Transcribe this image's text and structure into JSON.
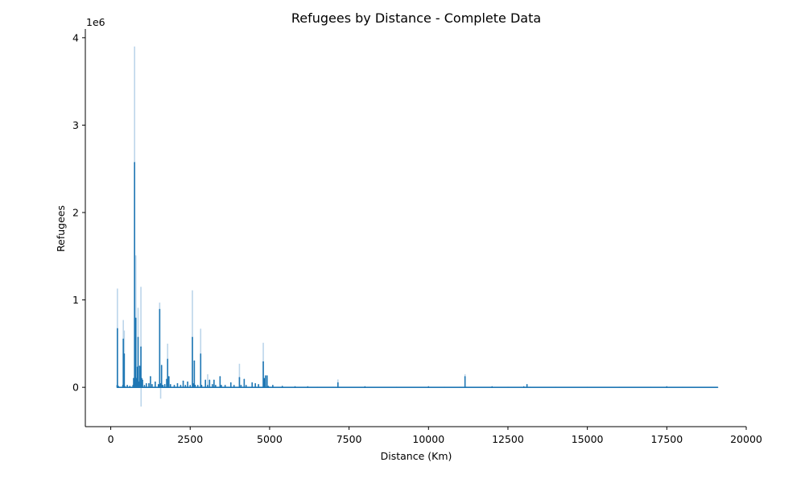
{
  "chart_data": {
    "type": "line",
    "title": "Refugees by Distance - Complete Data",
    "xlabel": "Distance (Km)",
    "ylabel": "Refugees",
    "y_offset_text": "1e6",
    "xlim": [
      -800,
      20000
    ],
    "ylim": [
      -450000,
      4100000
    ],
    "x_ticks": [
      0,
      2500,
      5000,
      7500,
      10000,
      12500,
      15000,
      17500,
      20000
    ],
    "x_tick_labels": [
      "0",
      "2500",
      "5000",
      "7500",
      "10000",
      "12500",
      "15000",
      "17500",
      "20000"
    ],
    "y_ticks": [
      0,
      1000000,
      2000000,
      3000000,
      4000000
    ],
    "y_tick_labels": [
      "0",
      "1",
      "2",
      "3",
      "4"
    ],
    "grid": false,
    "line_color": "#1f77b4",
    "band_color": "#a6c8e3",
    "series": [
      {
        "values": [
          [
            200,
            20000
          ],
          [
            210,
            670000
          ],
          [
            225,
            5000
          ],
          [
            240,
            10000
          ],
          [
            380,
            20000
          ],
          [
            395,
            550000
          ],
          [
            410,
            10000
          ],
          [
            425,
            380000
          ],
          [
            440,
            10000
          ],
          [
            520,
            20000
          ],
          [
            600,
            10000
          ],
          [
            700,
            20000
          ],
          [
            720,
            100000
          ],
          [
            750,
            2570000
          ],
          [
            765,
            110000
          ],
          [
            790,
            790000
          ],
          [
            810,
            100000
          ],
          [
            840,
            230000
          ],
          [
            860,
            570000
          ],
          [
            880,
            60000
          ],
          [
            910,
            240000
          ],
          [
            950,
            460000
          ],
          [
            975,
            100000
          ],
          [
            1000,
            80000
          ],
          [
            1060,
            20000
          ],
          [
            1120,
            40000
          ],
          [
            1200,
            40000
          ],
          [
            1250,
            120000
          ],
          [
            1300,
            30000
          ],
          [
            1400,
            60000
          ],
          [
            1500,
            30000
          ],
          [
            1540,
            890000
          ],
          [
            1560,
            40000
          ],
          [
            1600,
            250000
          ],
          [
            1640,
            20000
          ],
          [
            1700,
            30000
          ],
          [
            1760,
            90000
          ],
          [
            1790,
            320000
          ],
          [
            1830,
            120000
          ],
          [
            1880,
            30000
          ],
          [
            2000,
            20000
          ],
          [
            2100,
            40000
          ],
          [
            2200,
            20000
          ],
          [
            2280,
            70000
          ],
          [
            2350,
            20000
          ],
          [
            2420,
            60000
          ],
          [
            2500,
            20000
          ],
          [
            2570,
            570000
          ],
          [
            2590,
            40000
          ],
          [
            2630,
            300000
          ],
          [
            2660,
            20000
          ],
          [
            2740,
            20000
          ],
          [
            2830,
            380000
          ],
          [
            2860,
            20000
          ],
          [
            2980,
            80000
          ],
          [
            3050,
            20000
          ],
          [
            3110,
            80000
          ],
          [
            3200,
            30000
          ],
          [
            3250,
            80000
          ],
          [
            3300,
            20000
          ],
          [
            3440,
            120000
          ],
          [
            3480,
            20000
          ],
          [
            3600,
            20000
          ],
          [
            3780,
            50000
          ],
          [
            3880,
            20000
          ],
          [
            4050,
            110000
          ],
          [
            4100,
            20000
          ],
          [
            4200,
            90000
          ],
          [
            4260,
            20000
          ],
          [
            4450,
            50000
          ],
          [
            4550,
            40000
          ],
          [
            4650,
            30000
          ],
          [
            4800,
            290000
          ],
          [
            4830,
            100000
          ],
          [
            4870,
            130000
          ],
          [
            4920,
            130000
          ],
          [
            4960,
            10000
          ],
          [
            5100,
            20000
          ],
          [
            5400,
            10000
          ],
          [
            5800,
            5000
          ],
          [
            6200,
            5000
          ],
          [
            6500,
            0
          ],
          [
            7000,
            0
          ],
          [
            7150,
            50000
          ],
          [
            7200,
            0
          ],
          [
            8000,
            5000
          ],
          [
            9000,
            0
          ],
          [
            10000,
            5000
          ],
          [
            10500,
            0
          ],
          [
            11000,
            0
          ],
          [
            11150,
            120000
          ],
          [
            11200,
            0
          ],
          [
            12000,
            5000
          ],
          [
            12500,
            0
          ],
          [
            13000,
            5000
          ],
          [
            13100,
            30000
          ],
          [
            13200,
            0
          ],
          [
            14000,
            0
          ],
          [
            15000,
            0
          ],
          [
            16000,
            0
          ],
          [
            17000,
            0
          ],
          [
            17500,
            5000
          ],
          [
            18000,
            0
          ],
          [
            19100,
            0
          ]
        ],
        "band": [
          [
            210,
            1130000
          ],
          [
            395,
            770000
          ],
          [
            425,
            650000
          ],
          [
            750,
            3900000
          ],
          [
            790,
            1510000
          ],
          [
            860,
            910000
          ],
          [
            950,
            1150000
          ],
          [
            955,
            -220000
          ],
          [
            1540,
            970000
          ],
          [
            1570,
            -130000
          ],
          [
            1790,
            500000
          ],
          [
            2570,
            1110000
          ],
          [
            2830,
            670000
          ],
          [
            3050,
            150000
          ],
          [
            4050,
            270000
          ],
          [
            4800,
            510000
          ],
          [
            7150,
            90000
          ],
          [
            11150,
            150000
          ]
        ]
      }
    ]
  }
}
